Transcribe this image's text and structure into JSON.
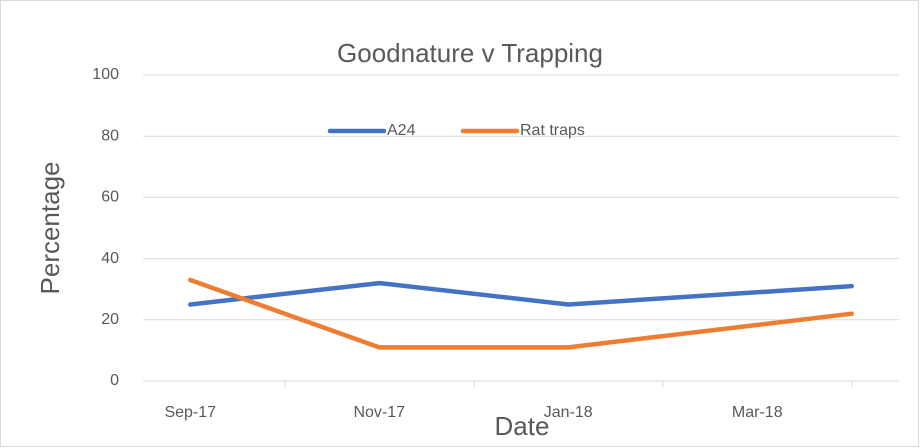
{
  "chart_data": {
    "type": "line",
    "title": "Goodnature v Trapping",
    "x_label": "Date",
    "y_label": "Percentage",
    "x": [
      "2017-09",
      "2017-11",
      "2018-01",
      "2018-04"
    ],
    "xlim": [
      "2017-09",
      "2018-04"
    ],
    "xticks": [
      {
        "value": "2017-09",
        "label": "Sep-17"
      },
      {
        "value": "2017-11",
        "label": "Nov-17"
      },
      {
        "value": "2018-01",
        "label": "Jan-18"
      },
      {
        "value": "2018-03",
        "label": "Mar-18"
      }
    ],
    "series": [
      {
        "name": "A24",
        "color": "#4472c4",
        "values": [
          25,
          32,
          25,
          31
        ]
      },
      {
        "name": "Rat traps",
        "color": "#ed7d31",
        "values": [
          33,
          11,
          11,
          22
        ]
      }
    ],
    "ylim": [
      0,
      100
    ],
    "yticks": [
      0,
      20,
      40,
      60,
      80,
      100
    ],
    "grid": true,
    "legend": "top"
  }
}
